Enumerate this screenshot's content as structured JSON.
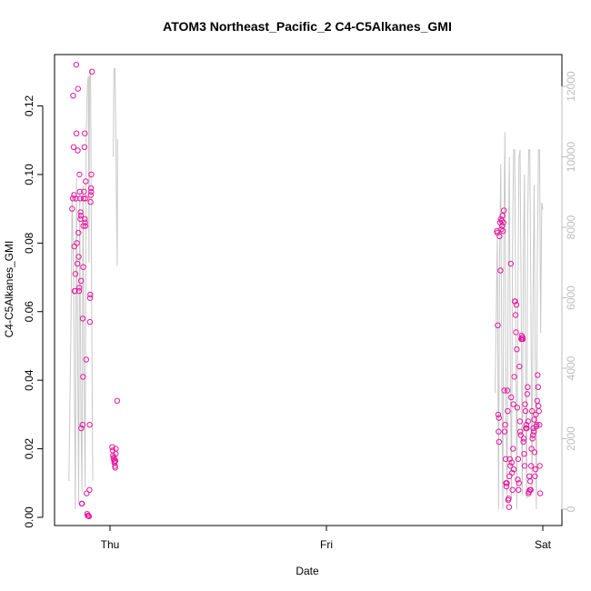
{
  "chart_data": {
    "type": "scatter",
    "title": "ATOM3 Northeast_Pacific_2 C4-C5Alkanes_GMI",
    "xlabel": "Date",
    "ylabel": "C4-C5Alkanes_GMI",
    "x_ticks": [
      "Thu",
      "Fri",
      "Sat"
    ],
    "x_range_days": [
      -0.2,
      2.05
    ],
    "ylim": [
      -0.003,
      0.134
    ],
    "y_ticks": [
      0.0,
      0.02,
      0.04,
      0.06,
      0.08,
      0.1,
      0.12
    ],
    "y2lim": [
      -250,
      12900
    ],
    "y2_ticks": [
      0,
      2000,
      4000,
      6000,
      8000,
      10000,
      12000
    ],
    "grid": false,
    "colors": {
      "points": "#e6199f",
      "line": "#c8c8c8",
      "right_axis": "#bdbdbd"
    },
    "series": [
      {
        "type": "scatter",
        "axis": "left",
        "points": [
          [
            -0.175,
            0.09
          ],
          [
            -0.172,
            0.093
          ],
          [
            -0.17,
            0.123
          ],
          [
            -0.168,
            0.108
          ],
          [
            -0.166,
            0.094
          ],
          [
            -0.165,
            0.079
          ],
          [
            -0.164,
            0.066
          ],
          [
            -0.162,
            0.066
          ],
          [
            -0.16,
            0.071
          ],
          [
            -0.158,
            0.093
          ],
          [
            -0.156,
            0.132
          ],
          [
            -0.155,
            0.112
          ],
          [
            -0.153,
            0.08
          ],
          [
            -0.151,
            0.074
          ],
          [
            -0.149,
            0.107
          ],
          [
            -0.148,
            0.125
          ],
          [
            -0.146,
            0.083
          ],
          [
            -0.145,
            0.076
          ],
          [
            -0.143,
            0.066
          ],
          [
            -0.142,
            0.067
          ],
          [
            -0.141,
            0.1
          ],
          [
            -0.14,
            0.095
          ],
          [
            -0.138,
            0.093
          ],
          [
            -0.137,
            0.087
          ],
          [
            -0.136,
            0.089
          ],
          [
            -0.135,
            0.088
          ],
          [
            -0.134,
            0.069
          ],
          [
            -0.133,
            0.026
          ],
          [
            -0.131,
            0.004
          ],
          [
            -0.129,
            0.004
          ],
          [
            -0.127,
            0.027
          ],
          [
            -0.126,
            0.058
          ],
          [
            -0.125,
            0.041
          ],
          [
            -0.124,
            0.073
          ],
          [
            -0.123,
            0.085
          ],
          [
            -0.122,
            0.093
          ],
          [
            -0.12,
            0.095
          ],
          [
            -0.118,
            0.108
          ],
          [
            -0.117,
            0.112
          ],
          [
            -0.116,
            0.087
          ],
          [
            -0.115,
            0.086
          ],
          [
            -0.114,
            0.085
          ],
          [
            -0.113,
            0.093
          ],
          [
            -0.112,
            0.098
          ],
          [
            -0.11,
            0.046
          ],
          [
            -0.108,
            0.007
          ],
          [
            -0.106,
            0.001
          ],
          [
            -0.103,
            0.0005
          ],
          [
            -0.1,
            0.0005
          ],
          [
            -0.097,
            0.0003
          ],
          [
            -0.095,
            0.008
          ],
          [
            -0.094,
            0.027
          ],
          [
            -0.093,
            0.057
          ],
          [
            -0.092,
            0.064
          ],
          [
            -0.091,
            0.065
          ],
          [
            -0.09,
            0.092
          ],
          [
            -0.089,
            0.094
          ],
          [
            -0.088,
            0.096
          ],
          [
            -0.087,
            0.095
          ],
          [
            -0.086,
            0.1
          ],
          [
            -0.083,
            0.13
          ],
          [
            0.01,
            0.0205
          ],
          [
            0.012,
            0.0195
          ],
          [
            0.014,
            0.018
          ],
          [
            0.016,
            0.017
          ],
          [
            0.018,
            0.0175
          ],
          [
            0.02,
            0.016
          ],
          [
            0.021,
            0.016
          ],
          [
            0.022,
            0.0165
          ],
          [
            0.023,
            0.015
          ],
          [
            0.024,
            0.0145
          ],
          [
            0.025,
            0.0165
          ],
          [
            0.026,
            0.0185
          ],
          [
            0.027,
            0.02
          ],
          [
            0.033,
            0.034
          ],
          [
            1.788,
            0.0835
          ],
          [
            1.79,
            0.083
          ],
          [
            1.792,
            0.056
          ],
          [
            1.794,
            0.03
          ],
          [
            1.796,
            0.025
          ],
          [
            1.797,
            0.029
          ],
          [
            1.798,
            0.022
          ],
          [
            1.8,
            0.082
          ],
          [
            1.802,
            0.086
          ],
          [
            1.804,
            0.072
          ],
          [
            1.806,
            0.087
          ],
          [
            1.808,
            0.084
          ],
          [
            1.81,
            0.0865
          ],
          [
            1.812,
            0.085
          ],
          [
            1.814,
            0.088
          ],
          [
            1.816,
            0.0835
          ],
          [
            1.818,
            0.086
          ],
          [
            1.82,
            0.0895
          ],
          [
            1.822,
            0.037
          ],
          [
            1.824,
            0.025
          ],
          [
            1.826,
            0.027
          ],
          [
            1.828,
            0.017
          ],
          [
            1.83,
            0.01
          ],
          [
            1.832,
            0.009
          ],
          [
            1.834,
            0.01
          ],
          [
            1.836,
            0.037
          ],
          [
            1.838,
            0.031
          ],
          [
            1.84,
            0.005
          ],
          [
            1.842,
            0.0055
          ],
          [
            1.844,
            0.003
          ],
          [
            1.846,
            0.012
          ],
          [
            1.848,
            0.017
          ],
          [
            1.85,
            0.015
          ],
          [
            1.852,
            0.074
          ],
          [
            1.854,
            0.035
          ],
          [
            1.856,
            0.016
          ],
          [
            1.858,
            0.013
          ],
          [
            1.86,
            0.008
          ],
          [
            1.862,
            0.02
          ],
          [
            1.864,
            0.033
          ],
          [
            1.866,
            0.014
          ],
          [
            1.868,
            0.041
          ],
          [
            1.87,
            0.063
          ],
          [
            1.872,
            0.063
          ],
          [
            1.874,
            0.059
          ],
          [
            1.876,
            0.054
          ],
          [
            1.878,
            0.062
          ],
          [
            1.88,
            0.049
          ],
          [
            1.882,
            0.032
          ],
          [
            1.884,
            0.011
          ],
          [
            1.886,
            0.017
          ],
          [
            1.888,
            0.008
          ],
          [
            1.89,
            0.01
          ],
          [
            1.892,
            0.044
          ],
          [
            1.894,
            0.028
          ],
          [
            1.896,
            0.025
          ],
          [
            1.898,
            0.024
          ],
          [
            1.9,
            0.052
          ],
          [
            1.902,
            0.053
          ],
          [
            1.904,
            0.052
          ],
          [
            1.906,
            0.0525
          ],
          [
            1.908,
            0.052
          ],
          [
            1.91,
            0.022
          ],
          [
            1.912,
            0.023
          ],
          [
            1.914,
            0.0185
          ],
          [
            1.916,
            0.015
          ],
          [
            1.918,
            0.033
          ],
          [
            1.92,
            0.031
          ],
          [
            1.922,
            0.026
          ],
          [
            1.924,
            0.027
          ],
          [
            1.926,
            0.026
          ],
          [
            1.928,
            0.036
          ],
          [
            1.93,
            0.038
          ],
          [
            1.932,
            0.028
          ],
          [
            1.934,
            0.007
          ],
          [
            1.936,
            0.0075
          ],
          [
            1.938,
            0.012
          ],
          [
            1.94,
            0.008
          ],
          [
            1.942,
            0.0105
          ],
          [
            1.944,
            0.008
          ],
          [
            1.946,
            0.015
          ],
          [
            1.948,
            0.02
          ],
          [
            1.95,
            0.031
          ],
          [
            1.952,
            0.023
          ],
          [
            1.954,
            0.024
          ],
          [
            1.956,
            0.026
          ],
          [
            1.958,
            0.025
          ],
          [
            1.96,
            0.0285
          ],
          [
            1.962,
            0.019
          ],
          [
            1.964,
            0.012
          ],
          [
            1.966,
            0.014
          ],
          [
            1.968,
            0.03
          ],
          [
            1.97,
            0.0265
          ],
          [
            1.972,
            0.027
          ],
          [
            1.974,
            0.034
          ],
          [
            1.976,
            0.0415
          ],
          [
            1.978,
            0.038
          ],
          [
            1.98,
            0.0325
          ],
          [
            1.982,
            0.031
          ],
          [
            1.984,
            0.027
          ],
          [
            1.986,
            0.015
          ],
          [
            1.988,
            0.007
          ]
        ]
      },
      {
        "type": "line",
        "axis": "right",
        "points": [
          [
            -0.19,
            800
          ],
          [
            -0.18,
            5500
          ],
          [
            -0.175,
            9000
          ],
          [
            -0.168,
            6500
          ],
          [
            -0.16,
            0
          ],
          [
            -0.155,
            9400
          ],
          [
            -0.15,
            5000
          ],
          [
            -0.145,
            200
          ],
          [
            -0.14,
            9000
          ],
          [
            -0.135,
            3000
          ],
          [
            -0.13,
            500
          ],
          [
            -0.125,
            9200
          ],
          [
            -0.12,
            4000
          ],
          [
            -0.115,
            600
          ],
          [
            -0.11,
            10500
          ],
          [
            -0.105,
            12000
          ],
          [
            -0.1,
            12300
          ],
          [
            -0.097,
            7000
          ],
          [
            -0.095,
            12200
          ],
          [
            -0.09,
            12500
          ],
          [
            -0.085,
            6000
          ],
          [
            -0.08,
            800
          ],
          [
            1.78,
            3300
          ],
          [
            1.79,
            7800
          ],
          [
            1.796,
            0
          ],
          [
            1.8,
            7000
          ],
          [
            1.806,
            9800
          ],
          [
            1.81,
            4000
          ],
          [
            1.815,
            0
          ],
          [
            1.82,
            8000
          ],
          [
            1.825,
            10700
          ],
          [
            1.83,
            3000
          ],
          [
            1.835,
            200
          ],
          [
            1.84,
            6500
          ],
          [
            1.845,
            10000
          ],
          [
            1.85,
            4000
          ],
          [
            1.855,
            300
          ],
          [
            1.86,
            7500
          ],
          [
            1.865,
            10200
          ],
          [
            1.87,
            10200
          ],
          [
            1.875,
            5000
          ],
          [
            1.88,
            0
          ],
          [
            1.885,
            6000
          ],
          [
            1.89,
            10000
          ],
          [
            1.895,
            10200
          ],
          [
            1.9,
            6000
          ],
          [
            1.905,
            400
          ],
          [
            1.91,
            7000
          ],
          [
            1.915,
            9500
          ],
          [
            1.92,
            4000
          ],
          [
            1.925,
            300
          ],
          [
            1.93,
            8000
          ],
          [
            1.935,
            10200
          ],
          [
            1.94,
            10200
          ],
          [
            1.945,
            6000
          ],
          [
            1.95,
            500
          ],
          [
            1.955,
            6000
          ],
          [
            1.96,
            9200
          ],
          [
            1.965,
            4000
          ],
          [
            1.97,
            0
          ],
          [
            1.975,
            7200
          ],
          [
            1.98,
            10200
          ],
          [
            1.985,
            10200
          ],
          [
            1.99,
            5000
          ],
          [
            1.995,
            8700
          ],
          [
            2.0,
            8500
          ],
          [
            0.015,
            10000
          ],
          [
            0.018,
            12500
          ],
          [
            0.023,
            12500
          ],
          [
            0.027,
            10500
          ],
          [
            0.033,
            6900
          ],
          [
            0.035,
            10500
          ],
          [
            2.0,
            8600
          ]
        ],
        "break_before": [
          22,
          66,
          72
        ]
      }
    ]
  }
}
